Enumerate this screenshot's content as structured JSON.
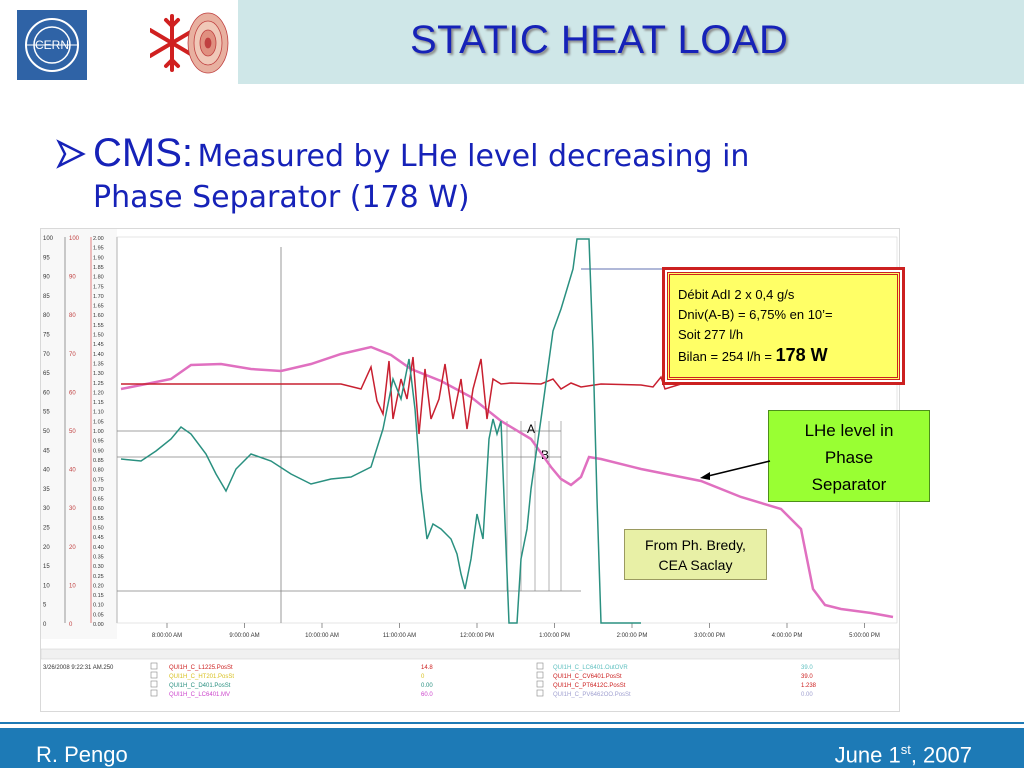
{
  "header": {
    "title": "STATIC HEAT LOAD",
    "logo_text": "CERN",
    "logo_icons": [
      "cern-logo-icon",
      "snowflake-cryo-logo-icon"
    ]
  },
  "bullet": {
    "icon": "arrow-bullet-icon",
    "label": "CMS:",
    "text_line1": "Measured by LHe level decreasing in",
    "text_line2": "Phase Separator (178 W)"
  },
  "chart": {
    "y_axis_1": [
      "100",
      "95",
      "90",
      "85",
      "80",
      "75",
      "70",
      "65",
      "60",
      "55",
      "50",
      "45",
      "40",
      "35",
      "30",
      "25",
      "20",
      "15",
      "10",
      "5",
      "0"
    ],
    "y_axis_2": [
      "100",
      "90",
      "80",
      "70",
      "60",
      "50",
      "40",
      "30",
      "20",
      "10",
      "0"
    ],
    "y_axis_3": [
      "2.00",
      "1.95",
      "1.90",
      "1.85",
      "1.80",
      "1.75",
      "1.70",
      "1.65",
      "1.60",
      "1.55",
      "1.50",
      "1.45",
      "1.40",
      "1.35",
      "1.30",
      "1.25",
      "1.20",
      "1.15",
      "1.10",
      "1.05",
      "1.00",
      "0.95",
      "0.90",
      "0.85",
      "0.80",
      "0.75",
      "0.70",
      "0.65",
      "0.60",
      "0.55",
      "0.50",
      "0.45",
      "0.40",
      "0.35",
      "0.30",
      "0.25",
      "0.20",
      "0.15",
      "0.10",
      "0.05",
      "0.00"
    ],
    "x_axis": [
      "8:00:00 AM",
      "9:00:00 AM",
      "10:00:00 AM",
      "11:00:00 AM",
      "12:00:00 PM",
      "1:00:00 PM",
      "2:00:00 PM",
      "3:00:00 PM",
      "4:00:00 PM",
      "5:00:00 PM"
    ],
    "marker_a": "A",
    "marker_b": "B",
    "legend_date": "3/26/2008 9:22:31 AM.250",
    "legend_left": [
      {
        "name": "QUI1H_C_L1225.PosSt",
        "value": "14.8",
        "color": "#cc2020"
      },
      {
        "name": "QUI1H_C_HT201.PosSt",
        "value": "0",
        "color": "#d8c020"
      },
      {
        "name": "QUI1H_C_D401.PosSt",
        "value": "0.00",
        "color": "#2a9080"
      },
      {
        "name": "QUI1H_C_LC6401.MV",
        "value": "60.0",
        "color": "#cc44cc"
      }
    ],
    "legend_right": [
      {
        "name": "QUI1H_C_LC6401.OutOVR",
        "value": "39.0",
        "color": "#60c0c0"
      },
      {
        "name": "QUI1H_C_CV6401.PosSt",
        "value": "39.0",
        "color": "#cc2020"
      },
      {
        "name": "QUI1H_C_PT6412C.PosSt",
        "value": "1.238",
        "color": "#cc2020"
      },
      {
        "name": "QUI1H_C_PV6462OO.PosSt",
        "value": "0.00",
        "color": "#a0a0d0"
      }
    ],
    "colors": {
      "pink": "#e070c0",
      "red": "#c82030",
      "teal": "#2a9080",
      "cyan": "#4aa8b0",
      "gray_line": "#808080",
      "blue_line": "#6070b0"
    }
  },
  "notes": {
    "debit_lines": [
      "Débit AdI 2 x 0,4 g/s",
      "Dniv(A-B) = 6,75% en 10’=",
      "Soit 277 l/h"
    ],
    "bilan_prefix": "Bilan = 254 l/h =",
    "bilan_value": "178 W",
    "lhe_lines": [
      "LHe level in",
      "Phase",
      "Separator"
    ],
    "from_lines": [
      "From Ph. Bredy,",
      "CEA Saclay"
    ]
  },
  "footer": {
    "author": "R. Pengo",
    "date_prefix": "June 1",
    "date_sup": "st",
    "date_suffix": ", 2007"
  }
}
